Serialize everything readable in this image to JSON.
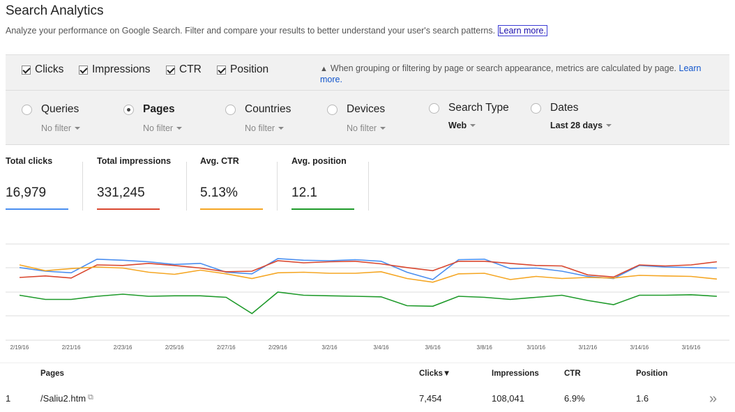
{
  "header": {
    "title": "Search Analytics",
    "subtitle": "Analyze your performance on Google Search. Filter and compare your results to better understand your user's search patterns.",
    "learn_more": "Learn more."
  },
  "metrics": {
    "clicks": "Clicks",
    "impressions": "Impressions",
    "ctr": "CTR",
    "position": "Position"
  },
  "notice": {
    "text": "When grouping or filtering by page or search appearance, metrics are calculated by page.",
    "link": "Learn more."
  },
  "dimensions": {
    "queries": {
      "name": "Queries",
      "filter": "No filter"
    },
    "pages": {
      "name": "Pages",
      "filter": "No filter"
    },
    "countries": {
      "name": "Countries",
      "filter": "No filter"
    },
    "devices": {
      "name": "Devices",
      "filter": "No filter"
    },
    "search_type": {
      "name": "Search Type",
      "filter": "Web"
    },
    "dates": {
      "name": "Dates",
      "filter": "Last 28 days"
    }
  },
  "stats": {
    "clicks": {
      "label": "Total clicks",
      "value": "16,979",
      "color": "#4a8ef0"
    },
    "impressions": {
      "label": "Total impressions",
      "value": "331,245",
      "color": "#d9472f"
    },
    "ctr": {
      "label": "Avg. CTR",
      "value": "5.13%",
      "color": "#f5a623"
    },
    "position": {
      "label": "Avg. position",
      "value": "12.1",
      "color": "#1e9a2a"
    }
  },
  "chart_data": {
    "type": "line",
    "x_tick_labels": [
      "2/19/16",
      "2/21/16",
      "2/23/16",
      "2/25/16",
      "2/27/16",
      "2/29/16",
      "3/2/16",
      "3/4/16",
      "3/6/16",
      "3/8/16",
      "3/10/16",
      "3/12/16",
      "3/14/16",
      "3/16/16"
    ],
    "x": [
      "2/19/16",
      "2/20/16",
      "2/21/16",
      "2/22/16",
      "2/23/16",
      "2/24/16",
      "2/25/16",
      "2/26/16",
      "2/27/16",
      "2/28/16",
      "2/29/16",
      "3/1/16",
      "3/2/16",
      "3/3/16",
      "3/4/16",
      "3/5/16",
      "3/6/16",
      "3/7/16",
      "3/8/16",
      "3/9/16",
      "3/10/16",
      "3/11/16",
      "3/12/16",
      "3/13/16",
      "3/14/16",
      "3/15/16",
      "3/16/16",
      "3/17/16"
    ],
    "series": [
      {
        "name": "Clicks",
        "color": "#4a8ef0",
        "values": [
          47,
          40,
          37,
          63,
          61,
          58,
          53,
          55,
          38,
          35,
          64,
          61,
          60,
          62,
          59,
          38,
          24,
          62,
          63,
          45,
          46,
          40,
          30,
          26,
          51,
          48,
          47,
          46
        ]
      },
      {
        "name": "Impressions",
        "color": "#d9472f",
        "values": [
          28,
          31,
          27,
          52,
          51,
          55,
          51,
          46,
          39,
          40,
          60,
          56,
          58,
          59,
          54,
          47,
          41,
          59,
          59,
          55,
          51,
          50,
          33,
          29,
          52,
          50,
          52,
          58
        ]
      },
      {
        "name": "CTR",
        "color": "#f5a623",
        "values": [
          52,
          41,
          45,
          48,
          46,
          38,
          34,
          42,
          35,
          26,
          37,
          38,
          36,
          36,
          39,
          26,
          19,
          35,
          36,
          24,
          30,
          26,
          28,
          27,
          32,
          31,
          30,
          25
        ]
      },
      {
        "name": "Position",
        "color": "#1e9a2a",
        "values": [
          -6,
          -14,
          -14,
          -8,
          -4,
          -8,
          -7,
          -7,
          -10,
          -41,
          0,
          -6,
          -7,
          -8,
          -9,
          -26,
          -27,
          -8,
          -10,
          -14,
          -10,
          -6,
          -16,
          -24,
          -6,
          -6,
          -5,
          -8
        ]
      }
    ]
  },
  "table": {
    "headers": {
      "pages": "Pages",
      "clicks": "Clicks▼",
      "impressions": "Impressions",
      "ctr": "CTR",
      "position": "Position"
    },
    "rows": [
      {
        "index": "1",
        "page": "/Saliu2.htm",
        "clicks": "7,454",
        "impressions": "108,041",
        "ctr": "6.9%",
        "position": "1.6"
      }
    ]
  }
}
